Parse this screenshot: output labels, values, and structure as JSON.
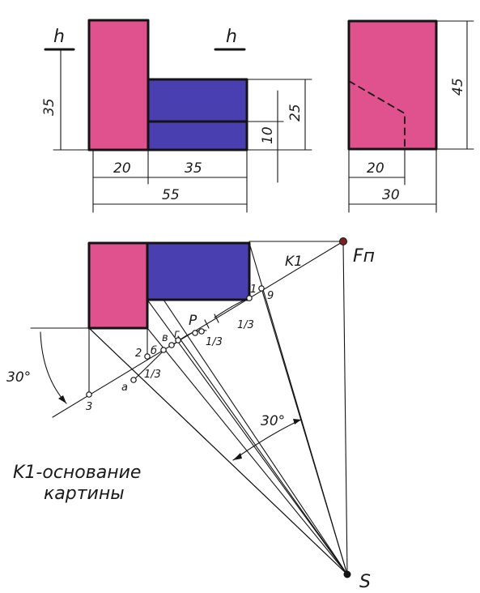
{
  "labels": {
    "h_left": "h",
    "h_mid": "h",
    "dim_35_vert": "35",
    "dim_25": "25",
    "dim_10": "10",
    "dim_45": "45",
    "dim_20_left": "20",
    "dim_35_horiz": "35",
    "dim_55": "55",
    "dim_20_right": "20",
    "dim_30": "30",
    "angle_left": "30°",
    "angle_bottom": "30°",
    "fn": "Fп",
    "k1": "K1",
    "s": "S",
    "p": "P",
    "pt_1": "1",
    "pt_2": "2",
    "pt_3": "3",
    "pt_9": "9",
    "pt_a": "а",
    "pt_b": "б",
    "pt_v": "в",
    "pt_g": "г",
    "third_1": "1/3",
    "third_2": "1/3",
    "third_3": "1/3"
  },
  "caption": {
    "line1": "K1-основание",
    "line2": "картины"
  },
  "colors": {
    "pink": "#e0528e",
    "blue": "#4a3fb0",
    "line": "#141414",
    "fn_point": "#7a2020"
  }
}
